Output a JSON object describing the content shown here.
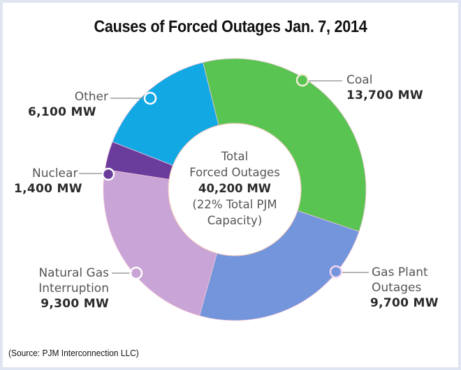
{
  "chart_data": {
    "type": "pie",
    "variant": "donut",
    "title": "Causes of Forced Outages Jan. 7, 2014",
    "unit": "MW",
    "categories": [
      "Coal",
      "Gas Plant Outages",
      "Natural Gas Interruption",
      "Nuclear",
      "Other"
    ],
    "values": [
      13700,
      9700,
      9300,
      1400,
      6100
    ],
    "value_labels": [
      "13,700 MW",
      "9,700 MW",
      "9,300 MW",
      "1,400 MW",
      "6,100 MW"
    ],
    "colors": [
      "#5ac452",
      "#7395db",
      "#c9a4d6",
      "#6a3c9c",
      "#12a8e4"
    ],
    "total": 40200,
    "center_label": {
      "line1": "Total",
      "line2": "Forced Outages",
      "value": "40,200 MW",
      "line4": "(22% Total PJM",
      "line5": "Capacity)"
    },
    "start_angle_deg": -14,
    "direction": "clockwise",
    "legend": "none (callout labels)",
    "source": "(Source: PJM Interconnection LLC)"
  },
  "labels": {
    "coal": {
      "name": "Coal",
      "value": "13,700 MW"
    },
    "gas_plant": {
      "line1": "Gas Plant",
      "line2": "Outages",
      "value": "9,700 MW"
    },
    "natural_gas": {
      "line1": "Natural Gas",
      "line2": "Interruption",
      "value": "9,300 MW"
    },
    "nuclear": {
      "name": "Nuclear",
      "value": "1,400 MW"
    },
    "other": {
      "name": "Other",
      "value": "6,100 MW"
    }
  }
}
